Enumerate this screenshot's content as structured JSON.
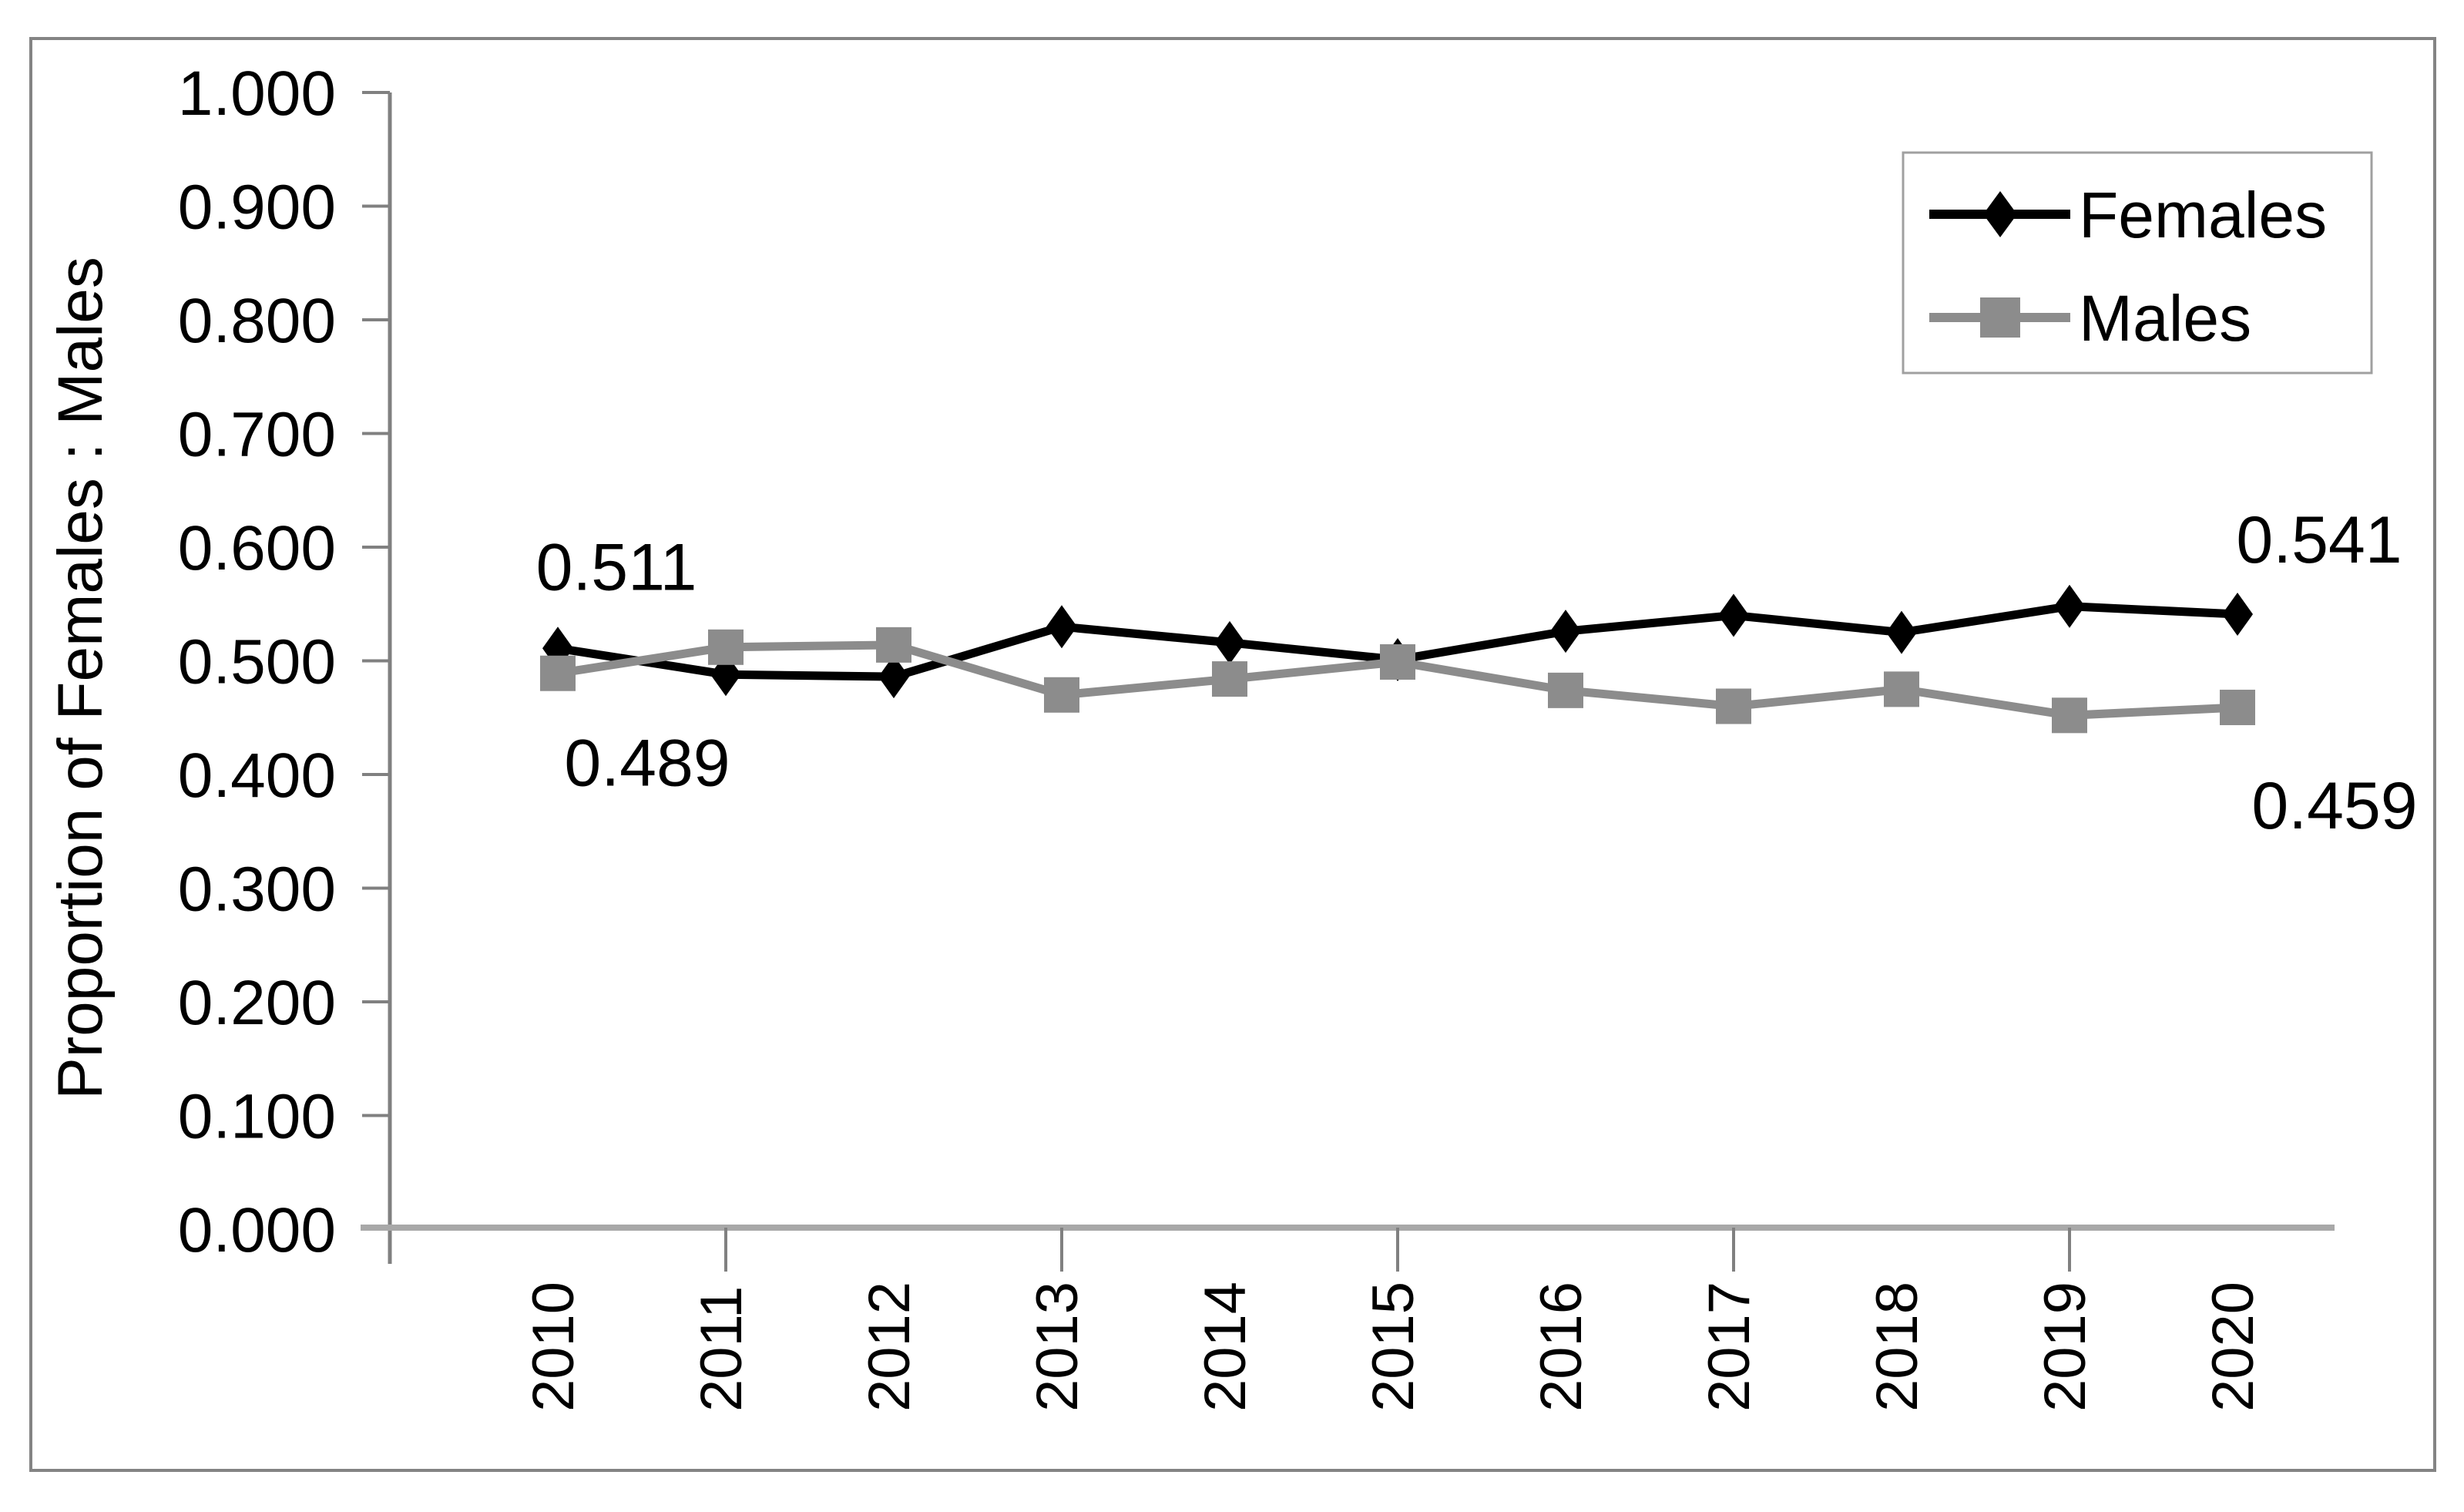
{
  "figure": {
    "background": "#ffffff",
    "border_color": "#848484"
  },
  "chart_data": {
    "type": "line",
    "title": "",
    "xlabel": "",
    "ylabel": "Proportion of Females : Males",
    "categories": [
      "2010",
      "2011",
      "2012",
      "2013",
      "2014",
      "2015",
      "2016",
      "2017",
      "2018",
      "2019",
      "2020"
    ],
    "series": [
      {
        "name": "Females",
        "color": "#000000",
        "marker": "diamond",
        "values": [
          0.511,
          0.488,
          0.486,
          0.53,
          0.516,
          0.501,
          0.526,
          0.54,
          0.525,
          0.548,
          0.541
        ]
      },
      {
        "name": "Males",
        "color": "#8c8c8c",
        "marker": "square",
        "values": [
          0.489,
          0.512,
          0.514,
          0.47,
          0.484,
          0.499,
          0.474,
          0.46,
          0.475,
          0.452,
          0.459
        ]
      }
    ],
    "ylim": [
      0.0,
      1.0
    ],
    "y_tick_step": 0.1,
    "y_tick_labels": [
      "0.000",
      "0.100",
      "0.200",
      "0.300",
      "0.400",
      "0.500",
      "0.600",
      "0.700",
      "0.800",
      "0.900",
      "1.000"
    ],
    "x_tick_years": [
      "2011",
      "2013",
      "2015",
      "2017",
      "2019"
    ],
    "grid": false,
    "legend_position": "top-right",
    "axis_colors": {
      "y_axis": "#808080",
      "x_axis": "#a8a8a8",
      "ticks": "#808080"
    },
    "annotations": [
      {
        "text": "0.511",
        "series": "Females",
        "year": "2010",
        "placement": "above-start"
      },
      {
        "text": "0.489",
        "series": "Males",
        "year": "2010",
        "placement": "below-start"
      },
      {
        "text": "0.541",
        "series": "Females",
        "year": "2020",
        "placement": "above-end"
      },
      {
        "text": "0.459",
        "series": "Males",
        "year": "2020",
        "placement": "below-end"
      }
    ]
  }
}
